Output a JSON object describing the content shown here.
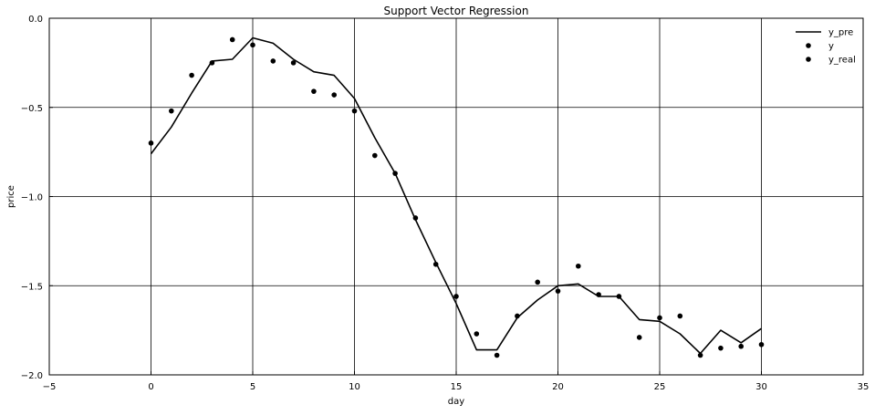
{
  "chart_data": {
    "type": "line",
    "title": "Support Vector Regression",
    "xlabel": "day",
    "ylabel": "price",
    "xlim": [
      -5,
      35
    ],
    "ylim": [
      -2.0,
      0.0
    ],
    "xticks": [
      -5,
      0,
      5,
      10,
      15,
      20,
      25,
      30,
      35
    ],
    "xtick_labels": [
      "−5",
      "0",
      "5",
      "10",
      "15",
      "20",
      "25",
      "30",
      "35"
    ],
    "yticks": [
      0.0,
      -0.5,
      -1.0,
      -1.5,
      -2.0
    ],
    "ytick_labels": [
      "0.0",
      "−0.5",
      "−1.0",
      "−1.5",
      "−2.0"
    ],
    "grid": true,
    "legend_position": "top-right",
    "series": [
      {
        "name": "y_pre",
        "kind": "line",
        "color": "#000000",
        "x": [
          0,
          1,
          2,
          3,
          4,
          5,
          6,
          7,
          8,
          9,
          10,
          11,
          12,
          13,
          14,
          15,
          16,
          17,
          18,
          19,
          20,
          21,
          22,
          23,
          24,
          25,
          26,
          27,
          28,
          29,
          30
        ],
        "y": [
          -0.76,
          -0.61,
          -0.42,
          -0.24,
          -0.23,
          -0.11,
          -0.14,
          -0.23,
          -0.3,
          -0.32,
          -0.45,
          -0.67,
          -0.87,
          -1.13,
          -1.37,
          -1.6,
          -1.86,
          -1.86,
          -1.68,
          -1.58,
          -1.5,
          -1.49,
          -1.56,
          -1.56,
          -1.69,
          -1.7,
          -1.77,
          -1.88,
          -1.75,
          -1.82,
          -1.74
        ]
      },
      {
        "name": "y",
        "kind": "scatter",
        "color": "#000000",
        "x": [],
        "y": []
      },
      {
        "name": "y_real",
        "kind": "scatter",
        "color": "#000000",
        "x": [
          0,
          1,
          2,
          3,
          4,
          5,
          6,
          7,
          8,
          9,
          10,
          11,
          12,
          13,
          14,
          15,
          16,
          17,
          18,
          19,
          20,
          21,
          22,
          23,
          24,
          25,
          26,
          27,
          28,
          29,
          30
        ],
        "y": [
          -0.7,
          -0.52,
          -0.32,
          -0.25,
          -0.12,
          -0.15,
          -0.24,
          -0.25,
          -0.41,
          -0.43,
          -0.52,
          -0.77,
          -0.87,
          -1.12,
          -1.38,
          -1.56,
          -1.77,
          -1.89,
          -1.67,
          -1.48,
          -1.53,
          -1.39,
          -1.55,
          -1.56,
          -1.79,
          -1.68,
          -1.67,
          -1.89,
          -1.85,
          -1.84,
          -1.83
        ]
      }
    ]
  }
}
